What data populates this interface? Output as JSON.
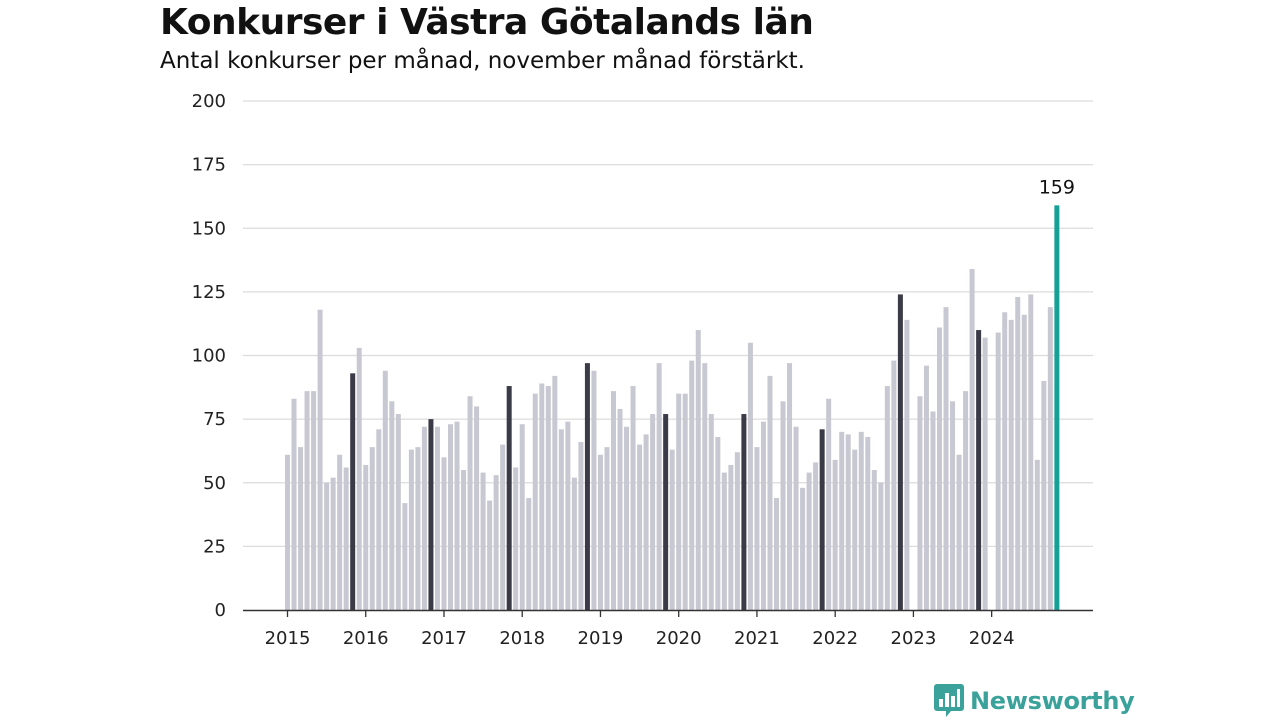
{
  "colors": {
    "normal": "#c8c8d2",
    "november": "#3b3b48",
    "latest": "#16a196",
    "grid": "#dcdcdc",
    "axis": "#333333",
    "brand": "#3aa29a"
  },
  "logo": {
    "text": "Newsworthy",
    "icon": "bar-chart-badge-icon"
  },
  "chart_data": {
    "type": "bar",
    "title": "Konkurser i Västra Götalands län",
    "subtitle": "Antal konkurser per månad, november månad förstärkt.",
    "xlabel": "",
    "ylabel": "",
    "ylim": [
      0,
      200
    ],
    "yticks": [
      0,
      25,
      50,
      75,
      100,
      125,
      150,
      175,
      200
    ],
    "xtick_labels": [
      "2015",
      "2016",
      "2017",
      "2018",
      "2019",
      "2020",
      "2021",
      "2022",
      "2023",
      "2024"
    ],
    "grid": true,
    "legend": "none",
    "start": "2015-01",
    "highlight_month": "november",
    "annotation": {
      "month": "2024-11",
      "label": "159"
    },
    "values": [
      61,
      83,
      64,
      86,
      86,
      118,
      50,
      52,
      61,
      56,
      93,
      103,
      57,
      64,
      71,
      94,
      82,
      77,
      42,
      63,
      64,
      72,
      75,
      72,
      60,
      73,
      74,
      55,
      84,
      80,
      54,
      43,
      53,
      65,
      88,
      56,
      73,
      44,
      85,
      89,
      88,
      92,
      71,
      74,
      52,
      66,
      97,
      94,
      61,
      64,
      86,
      79,
      72,
      88,
      65,
      69,
      77,
      97,
      77,
      63,
      85,
      85,
      98,
      110,
      97,
      77,
      68,
      54,
      57,
      62,
      77,
      105,
      64,
      74,
      92,
      44,
      82,
      97,
      72,
      48,
      54,
      58,
      71,
      83,
      59,
      70,
      69,
      63,
      70,
      68,
      55,
      50,
      88,
      98,
      124,
      114,
      0,
      84,
      96,
      78,
      111,
      119,
      82,
      61,
      86,
      134,
      110,
      107,
      0,
      109,
      117,
      114,
      123,
      116,
      124,
      59,
      90,
      119,
      159
    ]
  }
}
